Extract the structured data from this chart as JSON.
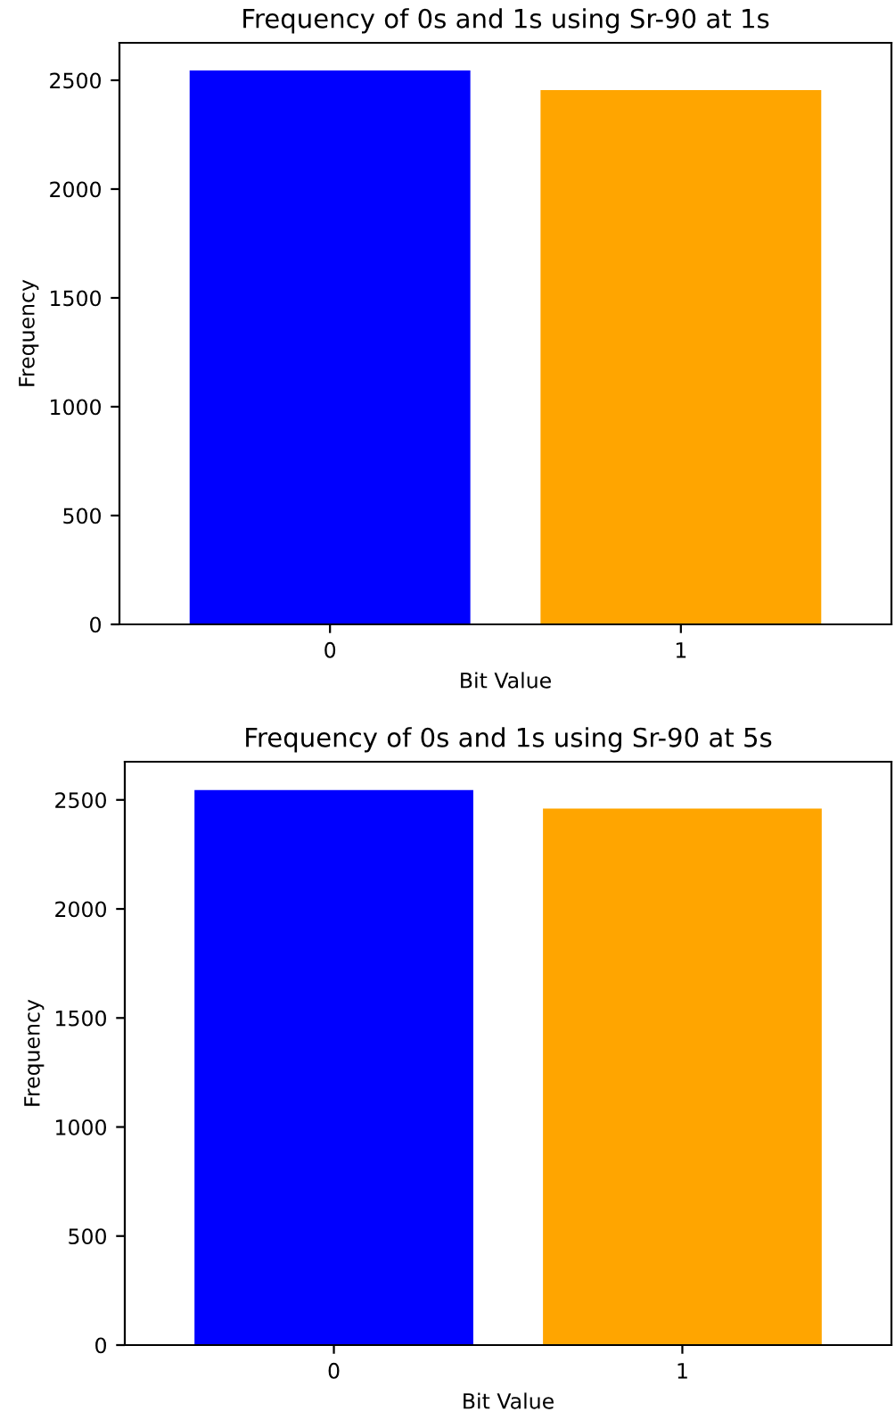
{
  "chart_data": [
    {
      "type": "bar",
      "title": "Frequency of 0s and 1s using Sr-90 at 1s",
      "xlabel": "Bit Value",
      "ylabel": "Frequency",
      "categories": [
        "0",
        "1"
      ],
      "values": [
        2545,
        2455
      ],
      "colors": [
        "#0000ff",
        "#ffa500"
      ],
      "ylim": [
        0,
        2672
      ],
      "yticks": [
        0,
        500,
        1000,
        1500,
        2000,
        2500
      ]
    },
    {
      "type": "bar",
      "title": "Frequency of 0s and 1s using Sr-90 at 5s",
      "xlabel": "Bit Value",
      "ylabel": "Frequency",
      "categories": [
        "0",
        "1"
      ],
      "values": [
        2545,
        2460
      ],
      "colors": [
        "#0000ff",
        "#ffa500"
      ],
      "ylim": [
        0,
        2675
      ],
      "yticks": [
        0,
        500,
        1000,
        1500,
        2000,
        2500
      ]
    }
  ]
}
